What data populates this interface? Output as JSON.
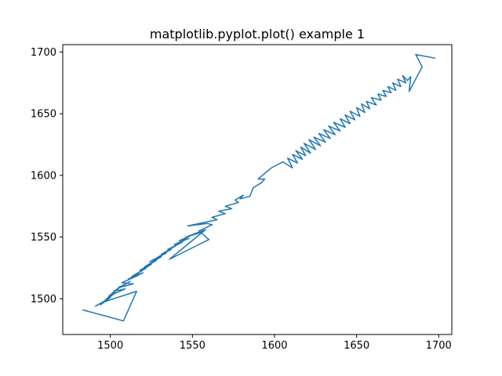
{
  "chart_data": {
    "type": "line",
    "title": "matplotlib.pyplot.plot() example 1",
    "xlabel": "",
    "ylabel": "",
    "xlim": [
      1471,
      1708
    ],
    "ylim": [
      1471,
      1706
    ],
    "xticks": [
      1500,
      1550,
      1600,
      1650,
      1700
    ],
    "yticks": [
      1500,
      1550,
      1600,
      1650,
      1700
    ],
    "grid": false,
    "legend": false,
    "series": [
      {
        "color": "#1f77b4",
        "points": [
          [
            1483,
            1491
          ],
          [
            1508,
            1482
          ],
          [
            1516,
            1506
          ],
          [
            1495,
            1497
          ],
          [
            1491,
            1494
          ],
          [
            1500,
            1501
          ],
          [
            1494,
            1495
          ],
          [
            1503,
            1505
          ],
          [
            1497,
            1499
          ],
          [
            1506,
            1510
          ],
          [
            1499,
            1502
          ],
          [
            1509,
            1508
          ],
          [
            1502,
            1506
          ],
          [
            1512,
            1514
          ],
          [
            1505,
            1509
          ],
          [
            1514,
            1512
          ],
          [
            1507,
            1513
          ],
          [
            1517,
            1519
          ],
          [
            1511,
            1516
          ],
          [
            1520,
            1521
          ],
          [
            1513,
            1518
          ],
          [
            1522,
            1525
          ],
          [
            1516,
            1520
          ],
          [
            1525,
            1528
          ],
          [
            1518,
            1523
          ],
          [
            1528,
            1531
          ],
          [
            1521,
            1526
          ],
          [
            1531,
            1534
          ],
          [
            1524,
            1530
          ],
          [
            1534,
            1537
          ],
          [
            1528,
            1533
          ],
          [
            1537,
            1540
          ],
          [
            1531,
            1536
          ],
          [
            1540,
            1543
          ],
          [
            1535,
            1540
          ],
          [
            1544,
            1546
          ],
          [
            1539,
            1544
          ],
          [
            1548,
            1549
          ],
          [
            1542,
            1547
          ],
          [
            1552,
            1553
          ],
          [
            1546,
            1550
          ],
          [
            1556,
            1554
          ],
          [
            1550,
            1552
          ],
          [
            1558,
            1556
          ],
          [
            1536,
            1532
          ],
          [
            1560,
            1548
          ],
          [
            1554,
            1555
          ],
          [
            1562,
            1560
          ],
          [
            1559,
            1561
          ],
          [
            1547,
            1559
          ],
          [
            1565,
            1564
          ],
          [
            1562,
            1566
          ],
          [
            1570,
            1569
          ],
          [
            1566,
            1571
          ],
          [
            1574,
            1573
          ],
          [
            1570,
            1575
          ],
          [
            1578,
            1578
          ],
          [
            1576,
            1580
          ],
          [
            1581,
            1584
          ],
          [
            1579,
            1581
          ],
          [
            1585,
            1583
          ],
          [
            1587,
            1590
          ],
          [
            1592,
            1594
          ],
          [
            1594,
            1597
          ],
          [
            1590,
            1597
          ],
          [
            1598,
            1606
          ],
          [
            1605,
            1611
          ],
          [
            1611,
            1606
          ],
          [
            1608,
            1614
          ],
          [
            1614,
            1610
          ],
          [
            1611,
            1617
          ],
          [
            1617,
            1613
          ],
          [
            1613,
            1620
          ],
          [
            1619,
            1616
          ],
          [
            1616,
            1623
          ],
          [
            1622,
            1618
          ],
          [
            1618,
            1626
          ],
          [
            1625,
            1621
          ],
          [
            1621,
            1629
          ],
          [
            1628,
            1624
          ],
          [
            1624,
            1631
          ],
          [
            1631,
            1627
          ],
          [
            1627,
            1634
          ],
          [
            1634,
            1630
          ],
          [
            1630,
            1637
          ],
          [
            1637,
            1633
          ],
          [
            1633,
            1640
          ],
          [
            1640,
            1636
          ],
          [
            1636,
            1643
          ],
          [
            1643,
            1639
          ],
          [
            1640,
            1646
          ],
          [
            1646,
            1642
          ],
          [
            1643,
            1649
          ],
          [
            1649,
            1645
          ],
          [
            1646,
            1652
          ],
          [
            1652,
            1648
          ],
          [
            1650,
            1655
          ],
          [
            1655,
            1651
          ],
          [
            1653,
            1658
          ],
          [
            1658,
            1654
          ],
          [
            1656,
            1660
          ],
          [
            1662,
            1657
          ],
          [
            1659,
            1663
          ],
          [
            1665,
            1661
          ],
          [
            1663,
            1666
          ],
          [
            1668,
            1664
          ],
          [
            1666,
            1669
          ],
          [
            1671,
            1667
          ],
          [
            1669,
            1672
          ],
          [
            1674,
            1669
          ],
          [
            1672,
            1675
          ],
          [
            1677,
            1672
          ],
          [
            1675,
            1678
          ],
          [
            1680,
            1675
          ],
          [
            1678,
            1681
          ],
          [
            1681,
            1677
          ],
          [
            1683,
            1680
          ],
          [
            1682,
            1668
          ],
          [
            1688,
            1683
          ],
          [
            1690,
            1688
          ],
          [
            1686,
            1698
          ],
          [
            1698,
            1695
          ]
        ]
      }
    ]
  }
}
